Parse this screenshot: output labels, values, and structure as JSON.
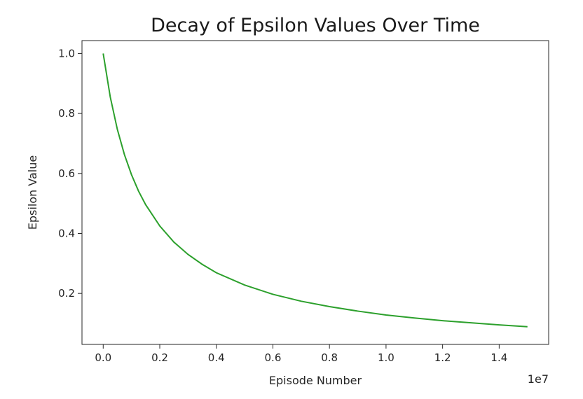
{
  "chart_data": {
    "type": "line",
    "title": "Decay of Epsilon Values Over Time",
    "xlabel": "Episode Number",
    "ylabel": "Epsilon Value",
    "x_offset_text": "1e7",
    "xlim": [
      -0.075,
      1.575
    ],
    "ylim": [
      0.03,
      1.043
    ],
    "x_ticks": [
      0.0,
      0.2,
      0.4,
      0.6,
      0.8,
      1.0,
      1.2,
      1.4
    ],
    "x_tick_labels": [
      "0.0",
      "0.2",
      "0.4",
      "0.6",
      "0.8",
      "1.0",
      "1.2",
      "1.4"
    ],
    "y_ticks": [
      0.2,
      0.4,
      0.6,
      0.8,
      1.0
    ],
    "y_tick_labels": [
      "0.2",
      "0.4",
      "0.6",
      "0.8",
      "1.0"
    ],
    "grid": false,
    "series": [
      {
        "color": "#2ca02c",
        "x": [
          0.0,
          0.025,
          0.05,
          0.075,
          0.1,
          0.125,
          0.15,
          0.2,
          0.25,
          0.3,
          0.35,
          0.4,
          0.5,
          0.6,
          0.7,
          0.8,
          0.9,
          1.0,
          1.1,
          1.2,
          1.3,
          1.4,
          1.5
        ],
        "y": [
          1.0,
          0.855,
          0.747,
          0.663,
          0.596,
          0.541,
          0.496,
          0.425,
          0.371,
          0.33,
          0.297,
          0.269,
          0.228,
          0.197,
          0.174,
          0.156,
          0.141,
          0.128,
          0.118,
          0.109,
          0.102,
          0.095,
          0.089
        ]
      }
    ]
  }
}
